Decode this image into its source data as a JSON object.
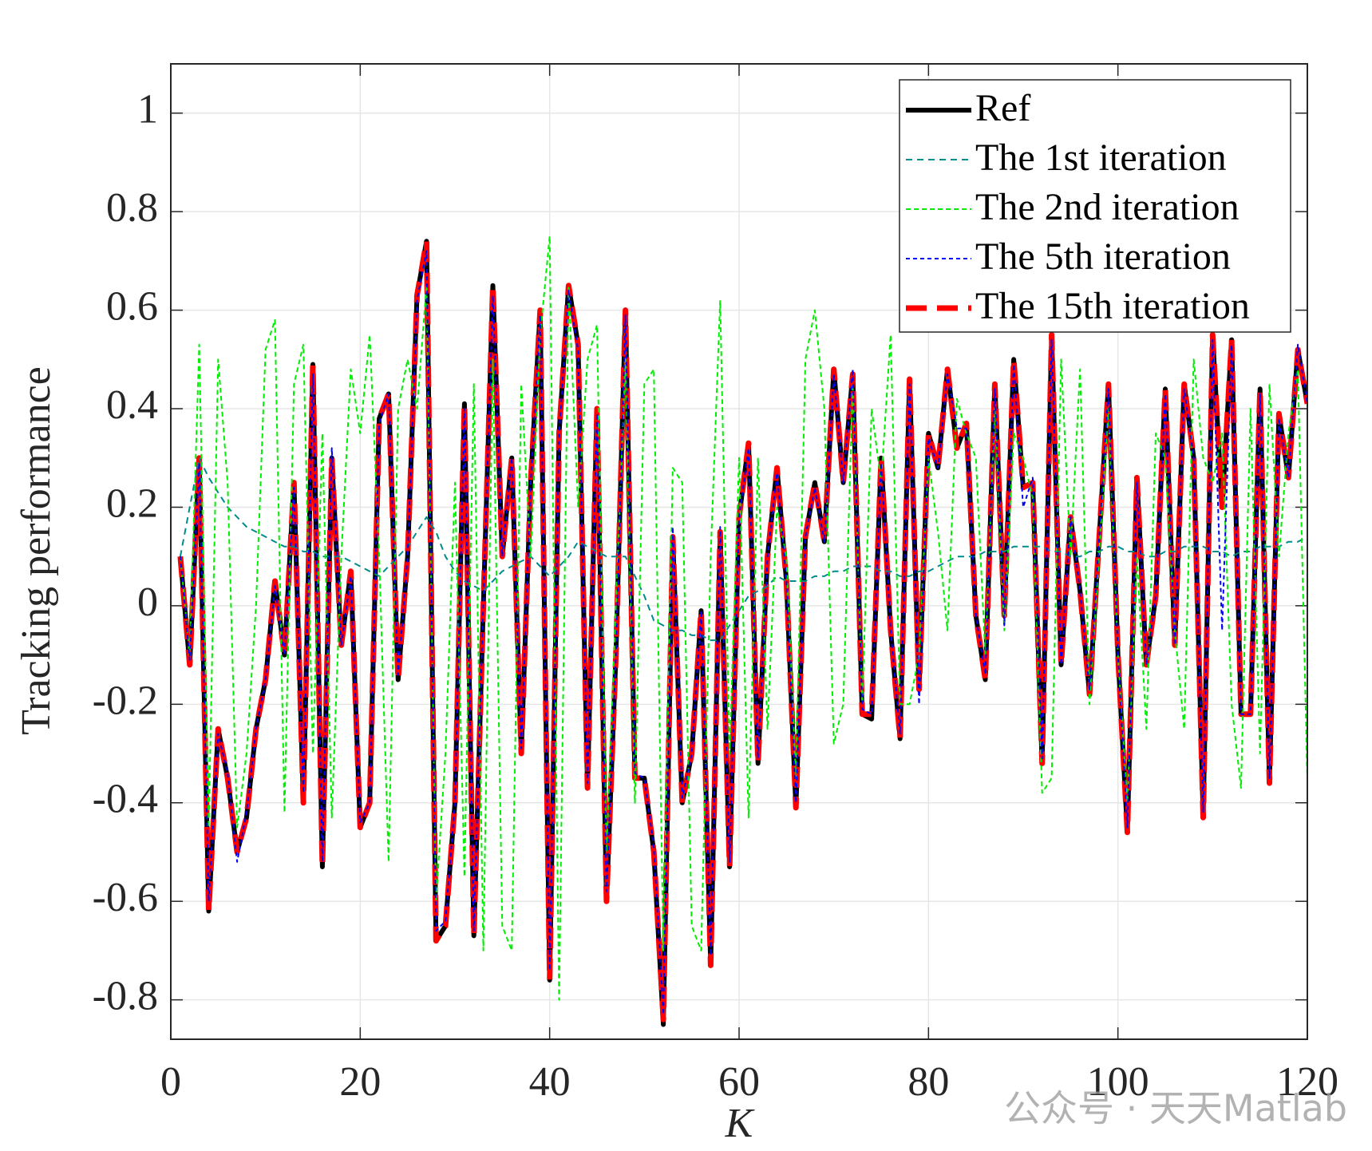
{
  "chart_data": {
    "type": "line",
    "xlabel": "K",
    "ylabel": "Tracking performance",
    "watermark": "公众号 · 天天Matlab",
    "xlim": [
      0,
      120
    ],
    "xticks": [
      0,
      20,
      40,
      60,
      80,
      100,
      120
    ],
    "ylim": [
      -0.88,
      1.1
    ],
    "yticks": [
      -0.8,
      -0.6,
      -0.4,
      -0.2,
      0,
      0.2,
      0.4,
      0.6,
      0.8,
      1
    ],
    "grid": true,
    "legend": "upper right",
    "x": [
      1,
      2,
      3,
      4,
      5,
      6,
      7,
      8,
      9,
      10,
      11,
      12,
      13,
      14,
      15,
      16,
      17,
      18,
      19,
      20,
      21,
      22,
      23,
      24,
      25,
      26,
      27,
      28,
      29,
      30,
      31,
      32,
      33,
      34,
      35,
      36,
      37,
      38,
      39,
      40,
      41,
      42,
      43,
      44,
      45,
      46,
      47,
      48,
      49,
      50,
      51,
      52,
      53,
      54,
      55,
      56,
      57,
      58,
      59,
      60,
      61,
      62,
      63,
      64,
      65,
      66,
      67,
      68,
      69,
      70,
      71,
      72,
      73,
      74,
      75,
      76,
      77,
      78,
      79,
      80,
      81,
      82,
      83,
      84,
      85,
      86,
      87,
      88,
      89,
      90,
      91,
      92,
      93,
      94,
      95,
      96,
      97,
      98,
      99,
      100,
      101,
      102,
      103,
      104,
      105,
      106,
      107,
      108,
      109,
      110,
      111,
      112,
      113,
      114,
      115,
      116,
      117,
      118,
      119,
      120
    ],
    "series": [
      {
        "name": "Ref",
        "color": "#000000",
        "values": [
          0.1,
          -0.12,
          0.3,
          -0.62,
          -0.25,
          -0.35,
          -0.5,
          -0.43,
          -0.25,
          -0.15,
          0.05,
          -0.1,
          0.25,
          -0.4,
          0.49,
          -0.53,
          0.3,
          -0.08,
          0.07,
          -0.45,
          -0.4,
          0.38,
          0.43,
          -0.15,
          0.1,
          0.63,
          0.74,
          -0.68,
          -0.65,
          -0.4,
          0.41,
          -0.67,
          0.0,
          0.65,
          0.1,
          0.3,
          -0.3,
          0.25,
          0.6,
          -0.76,
          0.35,
          0.65,
          0.53,
          -0.37,
          0.4,
          -0.6,
          -0.1,
          0.6,
          -0.35,
          -0.35,
          -0.5,
          -0.85,
          0.14,
          -0.4,
          -0.3,
          -0.01,
          -0.73,
          0.15,
          -0.53,
          0.18,
          0.33,
          -0.32,
          0.1,
          0.28,
          0.05,
          -0.41,
          0.14,
          0.25,
          0.13,
          0.48,
          0.25,
          0.47,
          -0.22,
          -0.23,
          0.3,
          -0.05,
          -0.27,
          0.46,
          -0.17,
          0.35,
          0.28,
          0.48,
          0.32,
          0.37,
          -0.02,
          -0.15,
          0.45,
          -0.02,
          0.5,
          0.24,
          0.25,
          -0.32,
          0.55,
          -0.12,
          0.18,
          0.03,
          -0.18,
          0.13,
          0.45,
          -0.1,
          -0.46,
          0.26,
          -0.12,
          0.02,
          0.44,
          -0.08,
          0.45,
          0.3,
          -0.43,
          0.55,
          0.2,
          0.54,
          -0.22,
          -0.22,
          0.44,
          -0.36,
          0.39,
          0.26,
          0.52,
          0.41
        ]
      },
      {
        "name": "The 1st iteration",
        "color": "#008b8b",
        "values": [
          0.1,
          0.2,
          0.3,
          0.26,
          0.23,
          0.2,
          0.18,
          0.16,
          0.15,
          0.14,
          0.13,
          0.12,
          0.12,
          0.11,
          0.11,
          0.1,
          0.1,
          0.1,
          0.09,
          0.08,
          0.07,
          0.06,
          0.08,
          0.1,
          0.12,
          0.15,
          0.18,
          0.15,
          0.1,
          0.07,
          0.05,
          0.04,
          0.03,
          0.05,
          0.07,
          0.08,
          0.09,
          0.1,
          0.08,
          0.06,
          0.08,
          0.1,
          0.13,
          0.12,
          0.11,
          0.1,
          0.1,
          0.1,
          0.06,
          0.02,
          -0.03,
          -0.04,
          -0.05,
          -0.05,
          -0.06,
          -0.06,
          -0.07,
          -0.07,
          -0.04,
          -0.01,
          0.02,
          0.03,
          0.04,
          0.06,
          0.05,
          0.05,
          0.05,
          0.06,
          0.06,
          0.07,
          0.07,
          0.08,
          0.08,
          0.08,
          0.07,
          0.07,
          0.06,
          0.06,
          0.07,
          0.07,
          0.08,
          0.09,
          0.1,
          0.1,
          0.1,
          0.11,
          0.11,
          0.11,
          0.12,
          0.12,
          0.12,
          0.12,
          0.11,
          0.11,
          0.1,
          0.1,
          0.11,
          0.11,
          0.12,
          0.12,
          0.11,
          0.11,
          0.1,
          0.1,
          0.11,
          0.11,
          0.12,
          0.12,
          0.12,
          0.11,
          0.11,
          0.1,
          0.11,
          0.11,
          0.12,
          0.12,
          0.12,
          0.13,
          0.13,
          0.14
        ]
      },
      {
        "name": "The 2nd iteration",
        "color": "#00ee00",
        "values": [
          0.1,
          -0.1,
          0.53,
          -0.45,
          0.5,
          0.25,
          -0.45,
          -0.3,
          0.0,
          0.52,
          0.58,
          -0.42,
          0.45,
          0.53,
          -0.3,
          0.35,
          -0.43,
          0.1,
          0.48,
          0.35,
          0.55,
          0.1,
          -0.52,
          0.4,
          0.5,
          0.4,
          0.65,
          -0.6,
          -0.3,
          0.25,
          -0.55,
          0.45,
          -0.7,
          0.5,
          -0.65,
          -0.7,
          0.45,
          0.1,
          0.55,
          0.75,
          -0.8,
          0.65,
          0.2,
          0.5,
          0.57,
          -0.5,
          0.0,
          0.5,
          -0.4,
          0.45,
          0.48,
          -0.7,
          0.28,
          0.25,
          -0.65,
          -0.7,
          0.1,
          0.62,
          -0.3,
          0.3,
          -0.43,
          0.3,
          -0.25,
          0.2,
          0.1,
          -0.35,
          0.5,
          0.6,
          0.4,
          -0.28,
          -0.2,
          0.45,
          -0.2,
          0.4,
          0.25,
          0.55,
          -0.2,
          -0.2,
          -0.1,
          0.3,
          0.15,
          -0.05,
          0.42,
          0.35,
          0.3,
          -0.1,
          0.4,
          -0.05,
          0.35,
          0.3,
          0.22,
          -0.38,
          -0.35,
          0.5,
          0.1,
          0.48,
          -0.2,
          0.1,
          0.4,
          -0.1,
          -0.4,
          0.1,
          -0.25,
          0.35,
          0.3,
          -0.05,
          -0.25,
          0.5,
          0.3,
          0.25,
          0.35,
          -0.2,
          -0.37,
          0.4,
          -0.3,
          0.45,
          0.1,
          0.35,
          0.48,
          -0.35
        ]
      },
      {
        "name": "The 5th iteration",
        "color": "#0000ff",
        "values": [
          0.1,
          -0.11,
          0.29,
          -0.6,
          -0.26,
          -0.34,
          -0.52,
          -0.42,
          -0.25,
          -0.15,
          0.04,
          -0.1,
          0.24,
          -0.38,
          0.47,
          -0.52,
          0.32,
          -0.08,
          0.06,
          -0.44,
          -0.4,
          0.37,
          0.43,
          -0.14,
          0.1,
          0.62,
          0.72,
          -0.66,
          -0.64,
          -0.4,
          0.4,
          -0.66,
          0.01,
          0.63,
          0.1,
          0.3,
          -0.29,
          0.25,
          0.59,
          -0.74,
          0.35,
          0.64,
          0.52,
          -0.36,
          0.39,
          -0.58,
          -0.1,
          0.59,
          -0.34,
          -0.35,
          -0.49,
          -0.83,
          0.16,
          -0.39,
          -0.3,
          -0.01,
          -0.71,
          0.16,
          -0.52,
          0.18,
          0.32,
          -0.31,
          0.1,
          0.27,
          0.05,
          -0.4,
          0.14,
          0.24,
          0.13,
          0.47,
          0.25,
          0.48,
          -0.21,
          -0.22,
          0.29,
          -0.05,
          -0.26,
          0.45,
          -0.2,
          0.34,
          0.28,
          0.47,
          0.36,
          0.36,
          -0.02,
          -0.14,
          0.44,
          -0.04,
          0.49,
          0.2,
          0.26,
          -0.31,
          0.54,
          -0.12,
          0.18,
          0.03,
          -0.17,
          0.13,
          0.44,
          -0.1,
          -0.45,
          0.25,
          -0.12,
          0.02,
          0.43,
          -0.08,
          0.44,
          0.3,
          -0.42,
          0.54,
          -0.05,
          0.53,
          -0.22,
          -0.22,
          0.43,
          -0.35,
          0.38,
          0.26,
          0.53,
          0.41
        ]
      },
      {
        "name": "The 15th iteration",
        "color": "#ff0000",
        "values": [
          0.1,
          -0.12,
          0.3,
          -0.62,
          -0.25,
          -0.35,
          -0.5,
          -0.43,
          -0.25,
          -0.15,
          0.05,
          -0.1,
          0.25,
          -0.4,
          0.49,
          -0.53,
          0.3,
          -0.08,
          0.07,
          -0.45,
          -0.4,
          0.38,
          0.43,
          -0.15,
          0.1,
          0.63,
          0.74,
          -0.68,
          -0.65,
          -0.4,
          0.41,
          -0.67,
          0.0,
          0.65,
          0.1,
          0.3,
          -0.3,
          0.25,
          0.6,
          -0.76,
          0.35,
          0.65,
          0.53,
          -0.37,
          0.4,
          -0.6,
          -0.1,
          0.6,
          -0.35,
          -0.35,
          -0.5,
          -0.84,
          0.14,
          -0.4,
          -0.3,
          -0.01,
          -0.73,
          0.15,
          -0.53,
          0.18,
          0.33,
          -0.32,
          0.1,
          0.28,
          0.05,
          -0.41,
          0.14,
          0.25,
          0.13,
          0.48,
          0.25,
          0.47,
          -0.22,
          -0.22,
          0.3,
          -0.05,
          -0.27,
          0.46,
          -0.17,
          0.35,
          0.28,
          0.48,
          0.32,
          0.37,
          -0.02,
          -0.15,
          0.45,
          -0.02,
          0.5,
          0.24,
          0.25,
          -0.32,
          0.55,
          -0.12,
          0.18,
          0.03,
          -0.18,
          0.13,
          0.45,
          -0.1,
          -0.46,
          0.26,
          -0.12,
          0.02,
          0.44,
          -0.08,
          0.45,
          0.3,
          -0.43,
          0.55,
          0.2,
          0.54,
          -0.22,
          -0.22,
          0.44,
          -0.36,
          0.39,
          0.26,
          0.52,
          0.41
        ]
      }
    ]
  }
}
